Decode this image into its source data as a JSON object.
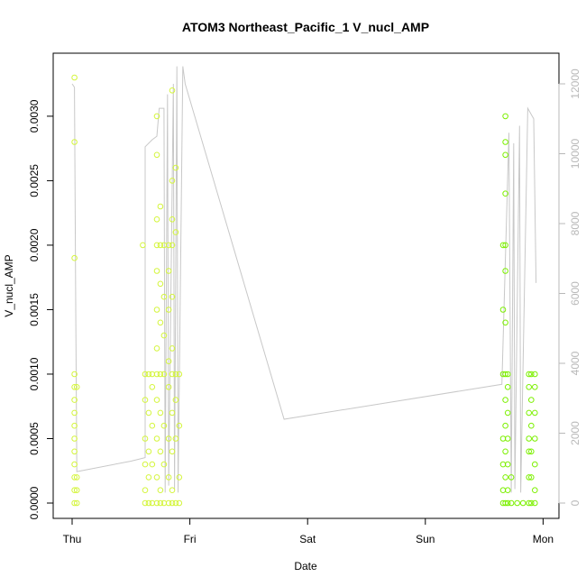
{
  "chart_data": {
    "type": "scatter",
    "title": "ATOM3 Northeast_Pacific_1 V_nucl_AMP",
    "xlabel": "Date",
    "ylabel": "V_nucl_AMP",
    "x_ticks": [
      "Thu",
      "Fri",
      "Sat",
      "Sun",
      "Mon"
    ],
    "xlim_days": [
      0,
      4.0
    ],
    "ylim": [
      0,
      0.0033
    ],
    "y_ticks": [
      "0.0000",
      "0.0005",
      "0.0010",
      "0.0015",
      "0.0020",
      "0.0025",
      "0.0030"
    ],
    "y_right_ticks": [
      "0",
      "2000",
      "4000",
      "6000",
      "8000",
      "10000",
      "12000"
    ],
    "y_right_lim": [
      0,
      12700
    ],
    "grid": false,
    "colors": {
      "points_early": "#d4f53c",
      "points_late": "#7cf000",
      "secondary_line": "#c8c8c8",
      "axis": "#000000",
      "right_axis": "#b8b8b8"
    },
    "series": [
      {
        "values": [
          {
            "x": 0.02,
            "y": 0.0033
          },
          {
            "x": 0.02,
            "y": 0.0028
          },
          {
            "x": 0.02,
            "y": 0.0019
          },
          {
            "x": 0.02,
            "y": 0.001
          },
          {
            "x": 0.02,
            "y": 0.0009
          },
          {
            "x": 0.02,
            "y": 0.0008
          },
          {
            "x": 0.02,
            "y": 0.0007
          },
          {
            "x": 0.02,
            "y": 0.0006
          },
          {
            "x": 0.02,
            "y": 0.0005
          },
          {
            "x": 0.02,
            "y": 0.0004
          },
          {
            "x": 0.02,
            "y": 0.0003
          },
          {
            "x": 0.02,
            "y": 0.0002
          },
          {
            "x": 0.02,
            "y": 0.0001
          },
          {
            "x": 0.02,
            "y": 0.0
          },
          {
            "x": 0.04,
            "y": 0.0009
          },
          {
            "x": 0.04,
            "y": 0.0002
          },
          {
            "x": 0.04,
            "y": 0.0001
          },
          {
            "x": 0.04,
            "y": 0.0
          },
          {
            "x": 0.6,
            "y": 0.002
          },
          {
            "x": 0.62,
            "y": 0.001
          },
          {
            "x": 0.62,
            "y": 0.0008
          },
          {
            "x": 0.62,
            "y": 0.0005
          },
          {
            "x": 0.62,
            "y": 0.0003
          },
          {
            "x": 0.62,
            "y": 0.0001
          },
          {
            "x": 0.62,
            "y": 0.0
          },
          {
            "x": 0.65,
            "y": 0.001
          },
          {
            "x": 0.65,
            "y": 0.0007
          },
          {
            "x": 0.65,
            "y": 0.0004
          },
          {
            "x": 0.65,
            "y": 0.0002
          },
          {
            "x": 0.65,
            "y": 0.0
          },
          {
            "x": 0.68,
            "y": 0.001
          },
          {
            "x": 0.68,
            "y": 0.0009
          },
          {
            "x": 0.68,
            "y": 0.0006
          },
          {
            "x": 0.68,
            "y": 0.0003
          },
          {
            "x": 0.68,
            "y": 0.0
          },
          {
            "x": 0.72,
            "y": 0.003
          },
          {
            "x": 0.72,
            "y": 0.0027
          },
          {
            "x": 0.72,
            "y": 0.0022
          },
          {
            "x": 0.72,
            "y": 0.002
          },
          {
            "x": 0.72,
            "y": 0.0018
          },
          {
            "x": 0.72,
            "y": 0.0015
          },
          {
            "x": 0.72,
            "y": 0.0012
          },
          {
            "x": 0.72,
            "y": 0.001
          },
          {
            "x": 0.72,
            "y": 0.0008
          },
          {
            "x": 0.72,
            "y": 0.0005
          },
          {
            "x": 0.72,
            "y": 0.0002
          },
          {
            "x": 0.72,
            "y": 0.0
          },
          {
            "x": 0.75,
            "y": 0.0023
          },
          {
            "x": 0.75,
            "y": 0.002
          },
          {
            "x": 0.75,
            "y": 0.0017
          },
          {
            "x": 0.75,
            "y": 0.0014
          },
          {
            "x": 0.75,
            "y": 0.001
          },
          {
            "x": 0.75,
            "y": 0.0007
          },
          {
            "x": 0.75,
            "y": 0.0004
          },
          {
            "x": 0.75,
            "y": 0.0001
          },
          {
            "x": 0.75,
            "y": 0.0
          },
          {
            "x": 0.78,
            "y": 0.002
          },
          {
            "x": 0.78,
            "y": 0.0016
          },
          {
            "x": 0.78,
            "y": 0.0013
          },
          {
            "x": 0.78,
            "y": 0.001
          },
          {
            "x": 0.78,
            "y": 0.0006
          },
          {
            "x": 0.78,
            "y": 0.0003
          },
          {
            "x": 0.78,
            "y": 0.0
          },
          {
            "x": 0.82,
            "y": 0.002
          },
          {
            "x": 0.82,
            "y": 0.0018
          },
          {
            "x": 0.82,
            "y": 0.0015
          },
          {
            "x": 0.82,
            "y": 0.0011
          },
          {
            "x": 0.82,
            "y": 0.0009
          },
          {
            "x": 0.82,
            "y": 0.0005
          },
          {
            "x": 0.82,
            "y": 0.0002
          },
          {
            "x": 0.82,
            "y": 0.0
          },
          {
            "x": 0.85,
            "y": 0.0032
          },
          {
            "x": 0.85,
            "y": 0.0025
          },
          {
            "x": 0.85,
            "y": 0.0022
          },
          {
            "x": 0.85,
            "y": 0.002
          },
          {
            "x": 0.85,
            "y": 0.0016
          },
          {
            "x": 0.85,
            "y": 0.0012
          },
          {
            "x": 0.85,
            "y": 0.001
          },
          {
            "x": 0.85,
            "y": 0.0007
          },
          {
            "x": 0.85,
            "y": 0.0004
          },
          {
            "x": 0.85,
            "y": 0.0001
          },
          {
            "x": 0.85,
            "y": 0.0
          },
          {
            "x": 0.88,
            "y": 0.0026
          },
          {
            "x": 0.88,
            "y": 0.0021
          },
          {
            "x": 0.88,
            "y": 0.001
          },
          {
            "x": 0.88,
            "y": 0.0008
          },
          {
            "x": 0.88,
            "y": 0.0005
          },
          {
            "x": 0.88,
            "y": 0.0
          },
          {
            "x": 0.91,
            "y": 0.001
          },
          {
            "x": 0.91,
            "y": 0.0006
          },
          {
            "x": 0.91,
            "y": 0.0002
          },
          {
            "x": 0.91,
            "y": 0.0
          },
          {
            "x": 3.66,
            "y": 0.002
          },
          {
            "x": 3.66,
            "y": 0.0015
          },
          {
            "x": 3.66,
            "y": 0.001
          },
          {
            "x": 3.66,
            "y": 0.0005
          },
          {
            "x": 3.66,
            "y": 0.0003
          },
          {
            "x": 3.66,
            "y": 0.0001
          },
          {
            "x": 3.66,
            "y": 0.0
          },
          {
            "x": 3.68,
            "y": 0.003
          },
          {
            "x": 3.68,
            "y": 0.0028
          },
          {
            "x": 3.68,
            "y": 0.0027
          },
          {
            "x": 3.68,
            "y": 0.0024
          },
          {
            "x": 3.68,
            "y": 0.002
          },
          {
            "x": 3.68,
            "y": 0.0018
          },
          {
            "x": 3.68,
            "y": 0.0014
          },
          {
            "x": 3.68,
            "y": 0.001
          },
          {
            "x": 3.68,
            "y": 0.0008
          },
          {
            "x": 3.68,
            "y": 0.0006
          },
          {
            "x": 3.68,
            "y": 0.0004
          },
          {
            "x": 3.68,
            "y": 0.0002
          },
          {
            "x": 3.68,
            "y": 0.0
          },
          {
            "x": 3.7,
            "y": 0.001
          },
          {
            "x": 3.7,
            "y": 0.0009
          },
          {
            "x": 3.7,
            "y": 0.0007
          },
          {
            "x": 3.7,
            "y": 0.0005
          },
          {
            "x": 3.7,
            "y": 0.0003
          },
          {
            "x": 3.7,
            "y": 0.0001
          },
          {
            "x": 3.7,
            "y": 0.0
          },
          {
            "x": 3.73,
            "y": 0.0002
          },
          {
            "x": 3.73,
            "y": 0.0
          },
          {
            "x": 3.78,
            "y": 0.0
          },
          {
            "x": 3.83,
            "y": 0.0
          },
          {
            "x": 3.88,
            "y": 0.001
          },
          {
            "x": 3.88,
            "y": 0.0009
          },
          {
            "x": 3.88,
            "y": 0.0007
          },
          {
            "x": 3.88,
            "y": 0.0005
          },
          {
            "x": 3.88,
            "y": 0.0004
          },
          {
            "x": 3.88,
            "y": 0.0002
          },
          {
            "x": 3.88,
            "y": 0.0
          },
          {
            "x": 3.9,
            "y": 0.001
          },
          {
            "x": 3.9,
            "y": 0.0008
          },
          {
            "x": 3.9,
            "y": 0.0006
          },
          {
            "x": 3.9,
            "y": 0.0004
          },
          {
            "x": 3.9,
            "y": 0.0002
          },
          {
            "x": 3.9,
            "y": 0.0
          },
          {
            "x": 3.93,
            "y": 0.001
          },
          {
            "x": 3.93,
            "y": 0.0009
          },
          {
            "x": 3.93,
            "y": 0.0007
          },
          {
            "x": 3.93,
            "y": 0.0005
          },
          {
            "x": 3.93,
            "y": 0.0003
          },
          {
            "x": 3.93,
            "y": 0.0001
          },
          {
            "x": 3.93,
            "y": 0.0
          }
        ]
      },
      {
        "axis": "right",
        "type": "line",
        "values": [
          {
            "x": 0.0,
            "y": 12000
          },
          {
            "x": 0.02,
            "y": 11900
          },
          {
            "x": 0.03,
            "y": 6000
          },
          {
            "x": 0.04,
            "y": 900
          },
          {
            "x": 0.5,
            "y": 1200
          },
          {
            "x": 0.62,
            "y": 1300
          },
          {
            "x": 0.62,
            "y": 10200
          },
          {
            "x": 0.68,
            "y": 10400
          },
          {
            "x": 0.72,
            "y": 10500
          },
          {
            "x": 0.74,
            "y": 11300
          },
          {
            "x": 0.78,
            "y": 11300
          },
          {
            "x": 0.79,
            "y": 300
          },
          {
            "x": 0.81,
            "y": 11700
          },
          {
            "x": 0.82,
            "y": 500
          },
          {
            "x": 0.86,
            "y": 12000
          },
          {
            "x": 0.87,
            "y": 400
          },
          {
            "x": 0.89,
            "y": 12500
          },
          {
            "x": 0.9,
            "y": 300
          },
          {
            "x": 0.94,
            "y": 12500
          },
          {
            "x": 0.96,
            "y": 12000
          },
          {
            "x": 1.8,
            "y": 2400
          },
          {
            "x": 3.65,
            "y": 3400
          },
          {
            "x": 3.71,
            "y": 10600
          },
          {
            "x": 3.73,
            "y": 300
          },
          {
            "x": 3.75,
            "y": 10300
          },
          {
            "x": 3.76,
            "y": 400
          },
          {
            "x": 3.8,
            "y": 10800
          },
          {
            "x": 3.81,
            "y": 300
          },
          {
            "x": 3.87,
            "y": 11300
          },
          {
            "x": 3.92,
            "y": 11000
          },
          {
            "x": 3.94,
            "y": 6300
          }
        ]
      }
    ]
  }
}
